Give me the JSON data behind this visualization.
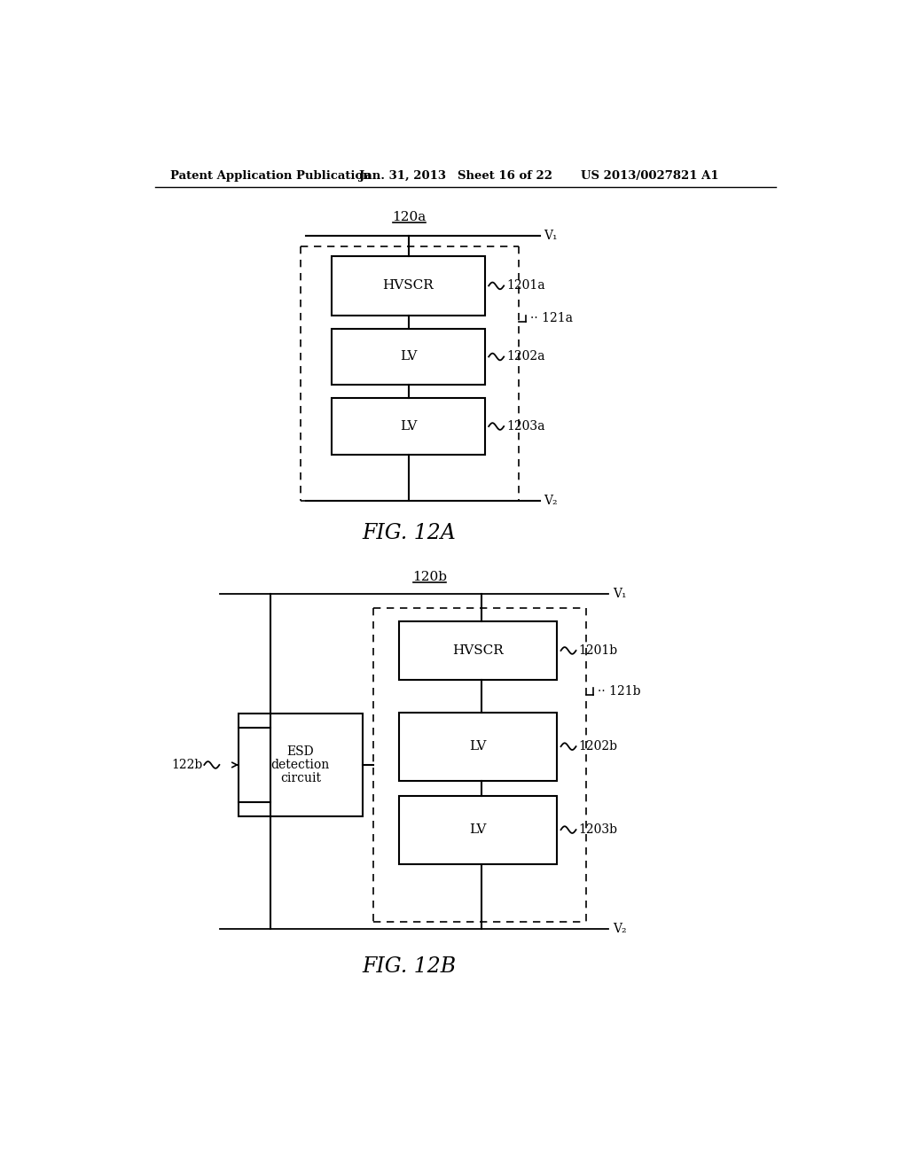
{
  "bg_color": "#ffffff",
  "header_text": "Patent Application Publication",
  "header_date": "Jan. 31, 2013",
  "header_sheet": "Sheet 16 of 22",
  "header_patent": "US 2013/0027821 A1",
  "fig_a_label": "FIG. 12A",
  "fig_b_label": "FIG. 12B",
  "text_color": "#000000",
  "line_color": "#000000"
}
